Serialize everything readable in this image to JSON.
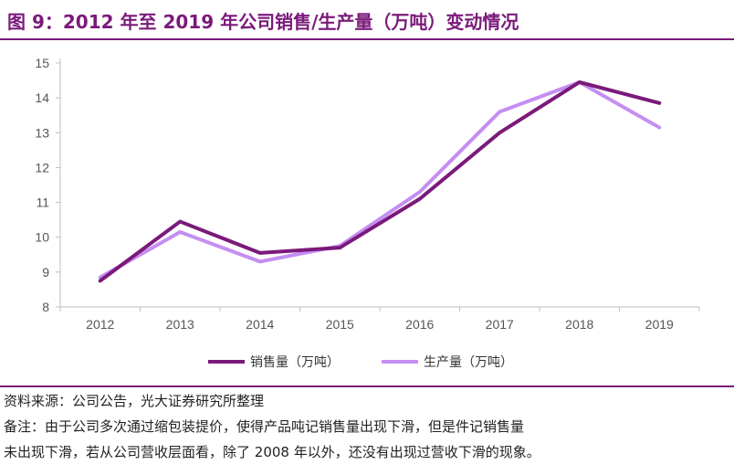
{
  "title": "图 9：2012 年至 2019 年公司销售/生产量（万吨）变动情况",
  "colors": {
    "accent": "#7a1a7a",
    "sales": "#7a1a7a",
    "production": "#c58ef2",
    "axis": "#bfbfbf"
  },
  "chart_data": {
    "type": "line",
    "title": "",
    "xlabel": "",
    "ylabel": "",
    "x": [
      "2012",
      "2013",
      "2014",
      "2015",
      "2016",
      "2017",
      "2018",
      "2019"
    ],
    "ylim": [
      8,
      15
    ],
    "yticks": [
      "8",
      "9",
      "10",
      "11",
      "12",
      "13",
      "14",
      "15"
    ],
    "grid": false,
    "legend_position": "bottom",
    "series": [
      {
        "name": "销售量（万吨）",
        "color": "#7a1a7a",
        "values": [
          8.75,
          10.45,
          9.55,
          9.7,
          11.1,
          13.0,
          14.45,
          13.85
        ]
      },
      {
        "name": "生产量（万吨）",
        "color": "#c58ef2",
        "values": [
          8.85,
          10.15,
          9.3,
          9.75,
          11.3,
          13.6,
          14.45,
          13.15
        ]
      }
    ]
  },
  "notes": {
    "source": "资料来源：公司公告，光大证券研究所整理",
    "remark_line1": "备注：由于公司多次通过缩包装提价，使得产品吨记销售量出现下滑，但是件记销售量",
    "remark_line2": "未出现下滑，若从公司营收层面看，除了 2008 年以外，还没有出现过营收下滑的现象。"
  }
}
